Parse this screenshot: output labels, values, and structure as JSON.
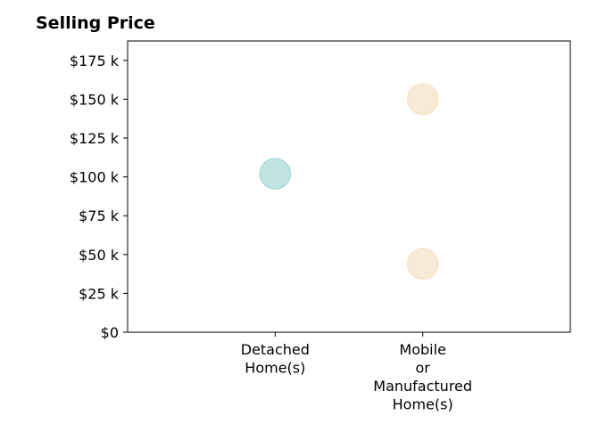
{
  "chart_data": {
    "type": "scatter",
    "title": "Selling Price",
    "xlabel": "",
    "ylabel": "",
    "categories": [
      [
        "Detached",
        "Home(s)"
      ],
      [
        "Mobile",
        "or",
        "Manufactured",
        "Home(s)"
      ]
    ],
    "ylim": [
      0,
      187500
    ],
    "yticks": [
      0,
      25000,
      50000,
      75000,
      100000,
      125000,
      150000,
      175000
    ],
    "ytick_labels": [
      "$0",
      "$25 k",
      "$50 k",
      "$75 k",
      "$100 k",
      "$125 k",
      "$150 k",
      "$175 k"
    ],
    "points": [
      {
        "category": 0,
        "value": 102000,
        "color": "#a8dad6"
      },
      {
        "category": 1,
        "value": 150000,
        "color": "#f5e3c3"
      },
      {
        "category": 1,
        "value": 44000,
        "color": "#f5e3c3"
      }
    ],
    "grid": false,
    "legend": "none"
  }
}
